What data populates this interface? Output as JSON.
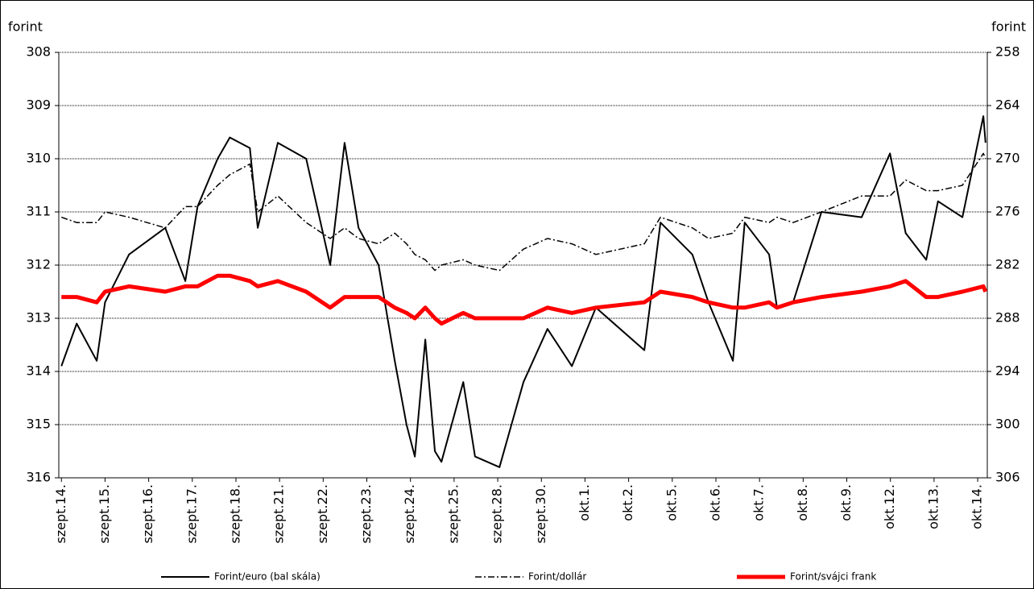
{
  "chart_data": {
    "type": "line",
    "y_label": "forint",
    "y2_label": "forint",
    "x": [
      0,
      0.35,
      0.81,
      1.0,
      1.55,
      2.38,
      2.84,
      3.12,
      3.58,
      3.86,
      4.32,
      4.5,
      4.96,
      5.61,
      6.16,
      6.49,
      6.81,
      7.27,
      7.64,
      7.91,
      8.1,
      8.34,
      8.56,
      8.71,
      9.21,
      9.48,
      10.04,
      10.59,
      11.14,
      11.7,
      12.25,
      13.36,
      13.73,
      14.46,
      14.83,
      15.39,
      15.66,
      16.22,
      16.4,
      16.77,
      17.42,
      18.34,
      18.99,
      19.35,
      19.82,
      20.09,
      20.65,
      21.13,
      21.18
    ],
    "xlim": [
      -0.06,
      21.22
    ],
    "xticks": [
      {
        "value": 0,
        "label": "szept.14."
      },
      {
        "value": 1,
        "label": "szept.15."
      },
      {
        "value": 2,
        "label": "szept.16."
      },
      {
        "value": 3,
        "label": "szept.17."
      },
      {
        "value": 4,
        "label": "szept.18."
      },
      {
        "value": 5,
        "label": "szept.21."
      },
      {
        "value": 6,
        "label": "szept.22."
      },
      {
        "value": 7,
        "label": "szept.23."
      },
      {
        "value": 8,
        "label": "szept.24."
      },
      {
        "value": 9,
        "label": "szept.25."
      },
      {
        "value": 10,
        "label": "szept.28."
      },
      {
        "value": 11,
        "label": "szept.30."
      },
      {
        "value": 12,
        "label": "okt.1."
      },
      {
        "value": 13,
        "label": "okt.2."
      },
      {
        "value": 14,
        "label": "okt.5."
      },
      {
        "value": 15,
        "label": "okt.6."
      },
      {
        "value": 16,
        "label": "okt.7."
      },
      {
        "value": 17,
        "label": "okt.8."
      },
      {
        "value": 18,
        "label": "okt.9."
      },
      {
        "value": 19,
        "label": "okt.12."
      },
      {
        "value": 20,
        "label": "okt.13."
      },
      {
        "value": 21,
        "label": "okt.14."
      }
    ],
    "ylim": [
      316,
      308
    ],
    "yticks": [
      308,
      309,
      310,
      311,
      312,
      313,
      314,
      315,
      316
    ],
    "y2lim": [
      306,
      258
    ],
    "y2ticks": [
      258,
      264,
      270,
      276,
      282,
      288,
      294,
      300,
      306
    ],
    "grid": true,
    "legend": "bottom",
    "series": [
      {
        "name": "Forint/euro (bal skála)",
        "color": "#000000",
        "style": "solid",
        "values": [
          313.9,
          313.1,
          313.8,
          312.7,
          311.8,
          311.3,
          312.3,
          310.9,
          310.0,
          309.6,
          309.8,
          311.3,
          309.7,
          310.0,
          312.0,
          309.7,
          311.3,
          312.0,
          313.8,
          315.0,
          315.6,
          313.4,
          315.5,
          315.7,
          314.2,
          315.6,
          315.8,
          314.2,
          313.2,
          313.9,
          312.8,
          313.6,
          311.2,
          311.8,
          312.7,
          313.8,
          311.2,
          311.8,
          312.8,
          312.7,
          311.0,
          311.1,
          309.9,
          311.4,
          311.9,
          310.8,
          311.1,
          309.2,
          309.7
        ]
      },
      {
        "name": "Forint/dollár",
        "color": "#000000",
        "style": "dashdot",
        "axis": "y2",
        "values": [
          276.6,
          277.2,
          277.2,
          276,
          276.6,
          277.8,
          275.4,
          275.4,
          273,
          271.8,
          270.6,
          276,
          274.2,
          277.2,
          279,
          277.8,
          279,
          279.6,
          278.4,
          279.6,
          280.8,
          281.4,
          282.6,
          282,
          281.4,
          282,
          282.6,
          280.2,
          279,
          279.6,
          280.8,
          279.6,
          276.6,
          277.8,
          279,
          278.4,
          276.6,
          277.2,
          276.6,
          277.2,
          276,
          274.2,
          274.2,
          272.4,
          273.6,
          273.6,
          273,
          269.4,
          270
        ]
      },
      {
        "name": "Forint/svájci frank",
        "color": "#ff0000",
        "style": "thick",
        "axis": "y2",
        "values": [
          285.6,
          285.6,
          286.2,
          285,
          284.4,
          285,
          284.4,
          284.4,
          283.2,
          283.2,
          283.8,
          284.4,
          283.8,
          285,
          286.8,
          285.6,
          285.6,
          285.6,
          286.8,
          287.4,
          288,
          286.8,
          288,
          288.6,
          287.4,
          288,
          288,
          288,
          286.8,
          287.4,
          286.8,
          286.2,
          285,
          285.6,
          286.2,
          286.8,
          286.8,
          286.2,
          286.8,
          286.2,
          285.6,
          285,
          284.4,
          283.8,
          285.6,
          285.6,
          285,
          284.4,
          285
        ]
      }
    ]
  }
}
